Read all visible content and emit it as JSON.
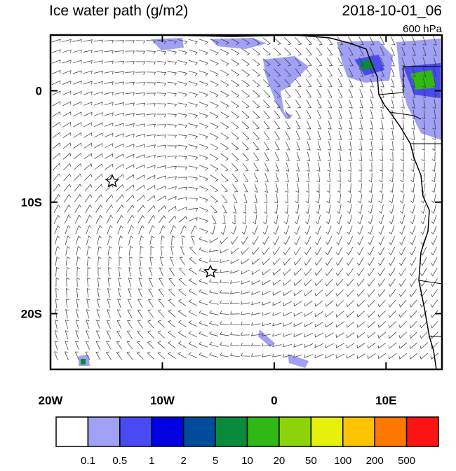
{
  "header": {
    "title": "Ice water path (g/m2)",
    "time": "2018-10-01_06",
    "level": "600 hPa"
  },
  "map": {
    "lonlim": [
      -20,
      15
    ],
    "latlim": [
      -25,
      5
    ],
    "lon_ticks": [
      {
        "value": -20,
        "label": "20W"
      },
      {
        "value": -10,
        "label": "10W"
      },
      0,
      {
        "value": 10,
        "label": "10E"
      }
    ],
    "lat_ticks": [
      0,
      {
        "value": -10,
        "label": "10S"
      },
      {
        "value": -20,
        "label": "20S"
      }
    ]
  },
  "colorbar": {
    "levels": [
      0.1,
      0.5,
      1,
      2,
      5,
      10,
      20,
      50,
      100,
      200,
      500
    ],
    "colors": [
      "#ffffff",
      "#a0a0f5",
      "#4a4af5",
      "#0000e0",
      "#004c9a",
      "#0a8a3c",
      "#30b814",
      "#8cd30a",
      "#e6f00a",
      "#ffc400",
      "#ff7800",
      "#ff1414"
    ]
  }
}
